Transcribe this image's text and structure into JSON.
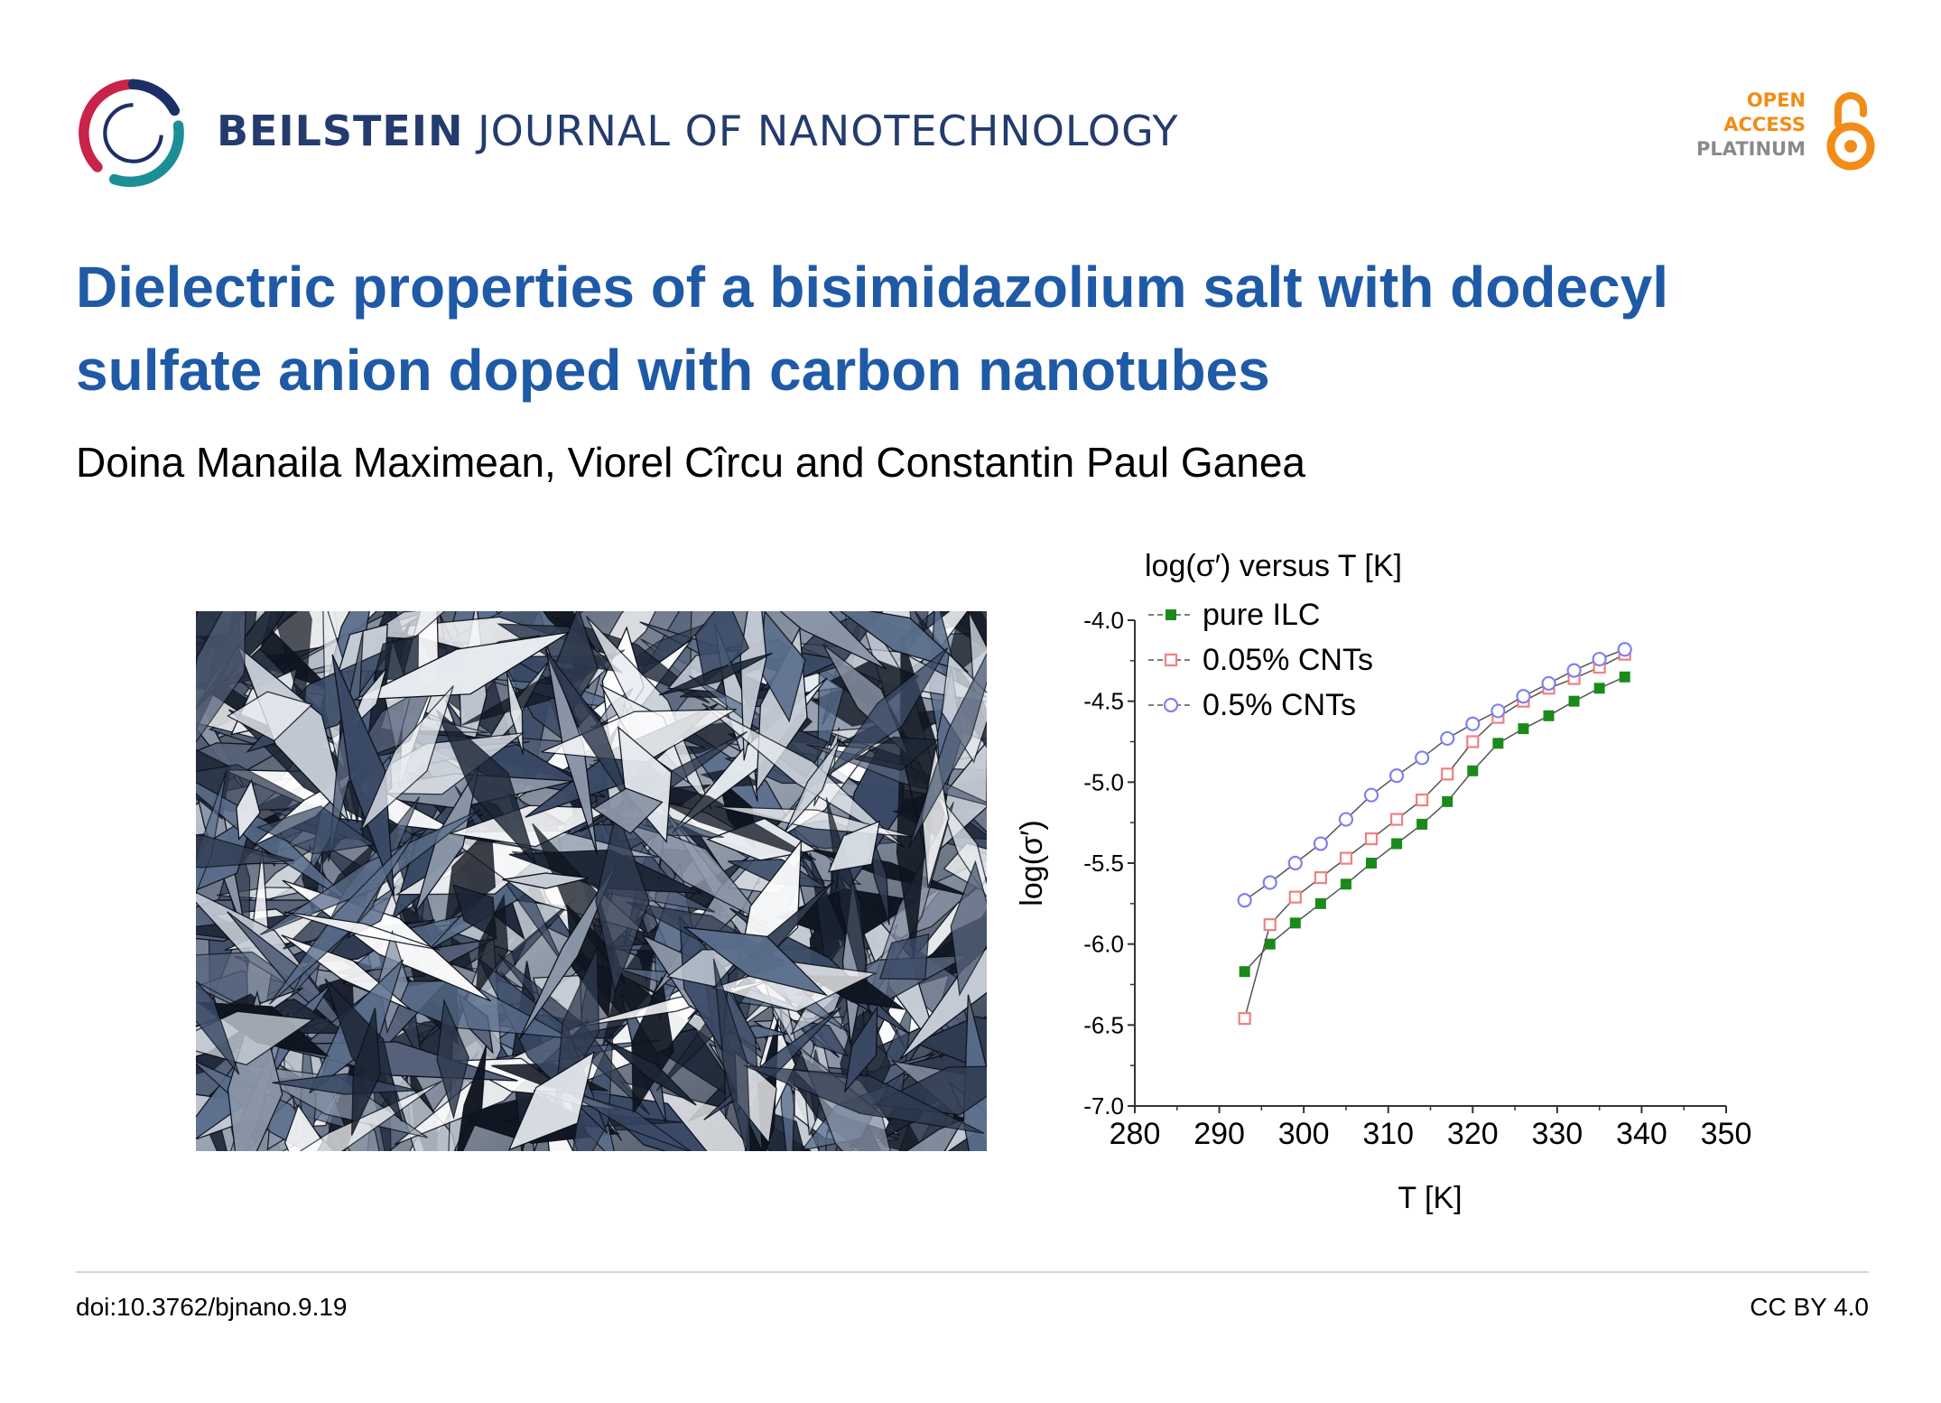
{
  "header": {
    "journal_bold": "BEILSTEIN",
    "journal_rest": "JOURNAL OF NANOTECHNOLOGY",
    "open_access": {
      "line1": "OPEN",
      "line2": "ACCESS",
      "line3": "PLATINUM"
    }
  },
  "article": {
    "title": "Dielectric properties of a bisimidazolium salt with dodecyl sulfate anion doped with carbon nanotubes",
    "authors": "Doina Manaila Maximean, Viorel Cîrcu and Constantin Paul Ganea"
  },
  "footer": {
    "doi": "doi:10.3762/bjnano.9.19",
    "license": "CC BY 4.0"
  },
  "colors": {
    "title": "#1f5aa6",
    "journal": "#243b6e",
    "oa_orange": "#f28c18",
    "oa_gray": "#8a8a8a"
  },
  "chart_data": {
    "type": "scatter",
    "title": "log(σ′) versus  T [K]",
    "xlabel": "T [K]",
    "ylabel": "log(σ′)",
    "xlim": [
      280,
      350
    ],
    "ylim": [
      -7.0,
      -4.0
    ],
    "xticks": [
      280,
      290,
      300,
      310,
      320,
      330,
      340,
      350
    ],
    "yticks": [
      -4.0,
      -4.5,
      -5.0,
      -5.5,
      -6.0,
      -6.5,
      -7.0
    ],
    "legend_position": "top-left",
    "series": [
      {
        "name": "pure ILC",
        "marker": "filled-square",
        "color": "#1a8a1a",
        "x": [
          293,
          296,
          299,
          302,
          305,
          308,
          311,
          314,
          317,
          320,
          323,
          326,
          329,
          332,
          335,
          338
        ],
        "y": [
          -6.17,
          -6.0,
          -5.87,
          -5.75,
          -5.63,
          -5.5,
          -5.38,
          -5.26,
          -5.12,
          -4.93,
          -4.76,
          -4.67,
          -4.59,
          -4.5,
          -4.42,
          -4.35
        ]
      },
      {
        "name": "0.05% CNTs",
        "marker": "open-square",
        "color": "#f08080",
        "x": [
          293,
          296,
          299,
          302,
          305,
          308,
          311,
          314,
          317,
          320,
          323,
          326,
          329,
          332,
          335,
          338
        ],
        "y": [
          -6.46,
          -5.88,
          -5.71,
          -5.59,
          -5.47,
          -5.35,
          -5.23,
          -5.11,
          -4.95,
          -4.75,
          -4.6,
          -4.5,
          -4.42,
          -4.36,
          -4.29,
          -4.21
        ]
      },
      {
        "name": "0.5% CNTs",
        "marker": "open-circle",
        "color": "#8080f0",
        "x": [
          293,
          296,
          299,
          302,
          305,
          308,
          311,
          314,
          317,
          320,
          323,
          326,
          329,
          332,
          335,
          338
        ],
        "y": [
          -5.73,
          -5.62,
          -5.5,
          -5.38,
          -5.23,
          -5.08,
          -4.96,
          -4.85,
          -4.73,
          -4.64,
          -4.56,
          -4.47,
          -4.39,
          -4.31,
          -4.24,
          -4.18
        ]
      }
    ]
  }
}
